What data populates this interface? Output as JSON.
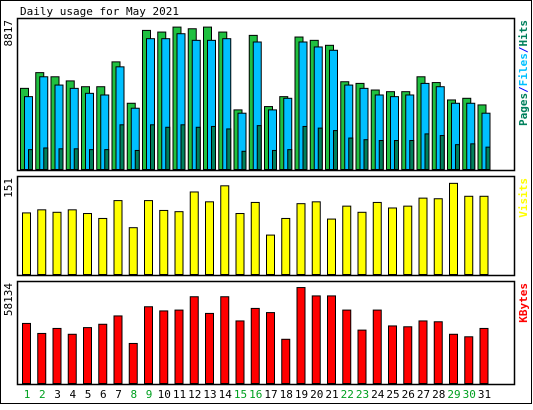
{
  "chart_data": {
    "type": "bar",
    "title": "Daily usage for May 2021",
    "categories": [
      "1",
      "2",
      "3",
      "4",
      "5",
      "6",
      "7",
      "8",
      "9",
      "10",
      "11",
      "12",
      "13",
      "14",
      "15",
      "16",
      "17",
      "18",
      "19",
      "20",
      "21",
      "22",
      "23",
      "24",
      "25",
      "26",
      "27",
      "28",
      "29",
      "30",
      "31"
    ],
    "weekend_days": [
      "1",
      "2",
      "8",
      "9",
      "15",
      "16",
      "22",
      "23",
      "29",
      "30"
    ],
    "panels": [
      {
        "id": "hits",
        "axis_max_label": "8817",
        "ymax": 8817,
        "side_label_parts": [
          {
            "text": "Pages",
            "color": "#00805c"
          },
          {
            "text": "/",
            "color": "#0000ff"
          },
          {
            "text": "Files",
            "color": "#00c0ff"
          },
          {
            "text": "/",
            "color": "#0000ff"
          },
          {
            "text": "Hits",
            "color": "#00805c"
          }
        ],
        "series": [
          {
            "name": "Hits",
            "color": "#20c040",
            "values": [
              4900,
              5850,
              5600,
              5350,
              5000,
              5000,
              6500,
              4000,
              8400,
              8300,
              8600,
              8500,
              8600,
              8300,
              3600,
              8100,
              3800,
              4400,
              8000,
              7800,
              7500,
              5300,
              5200,
              4800,
              4700,
              4700,
              5600,
              5250,
              4200,
              4300,
              3900
            ]
          },
          {
            "name": "Files",
            "color": "#00c0ff",
            "values": [
              4400,
              5600,
              5100,
              4900,
              4600,
              4500,
              6200,
              3700,
              7900,
              7900,
              8200,
              7800,
              7800,
              7900,
              3400,
              7700,
              3600,
              4300,
              7700,
              7400,
              7200,
              5100,
              4900,
              4500,
              4400,
              4500,
              5200,
              5000,
              4000,
              4000,
              3400
            ]
          },
          {
            "name": "Pages",
            "color": "#00805c",
            "values": [
              1200,
              1300,
              1250,
              1250,
              1200,
              1200,
              2700,
              1150,
              2700,
              2550,
              2700,
              2550,
              2600,
              2450,
              1100,
              2650,
              1150,
              1200,
              2600,
              2500,
              2350,
              1900,
              1800,
              1750,
              1750,
              1750,
              2150,
              2050,
              1500,
              1550,
              1350
            ]
          }
        ]
      },
      {
        "id": "visits",
        "axis_max_label": "151",
        "ymax": 151,
        "side_label_parts": [
          {
            "text": "Visits",
            "color": "#ffff00"
          }
        ],
        "series": [
          {
            "name": "Visits",
            "color": "#ffff00",
            "values": [
              100,
              105,
              101,
              105,
              99,
              91,
              120,
              76,
              120,
              104,
              102,
              134,
              118,
              144,
              99,
              117,
              64,
              91,
              115,
              118,
              90,
              111,
              101,
              117,
              108,
              111,
              124,
              123,
              148,
              127,
              127
            ]
          }
        ]
      },
      {
        "id": "kbytes",
        "axis_max_label": "58134",
        "ymax": 58134,
        "side_label_parts": [
          {
            "text": "KBytes",
            "color": "#ff0000"
          }
        ],
        "series": [
          {
            "name": "KBytes",
            "color": "#ff0000",
            "values": [
              36000,
              30000,
              33000,
              29500,
              33500,
              35500,
              40500,
              24000,
              46000,
              43500,
              44000,
              52000,
              42000,
              52000,
              37500,
              45000,
              42500,
              26500,
              57500,
              52500,
              52500,
              44000,
              32000,
              44000,
              34500,
              34000,
              37500,
              37000,
              29500,
              28000,
              33000
            ]
          }
        ]
      }
    ]
  }
}
